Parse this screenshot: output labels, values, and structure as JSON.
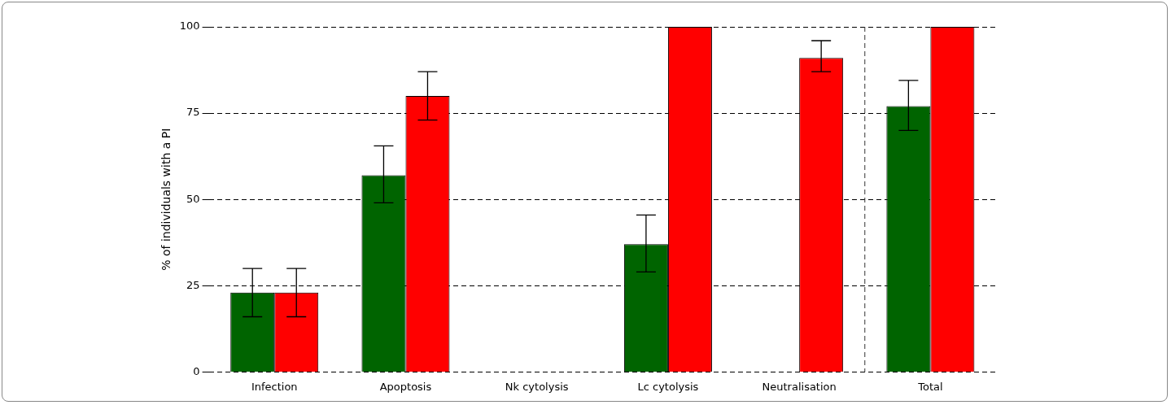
{
  "chart_data": {
    "type": "bar",
    "y_label": "% of individuals with a PI",
    "categories": [
      "Infection",
      "Apoptosis",
      "Nk cytolysis",
      "Lc cytolysis",
      "Neutralisation",
      "Total"
    ],
    "series": [
      {
        "color": "#006400",
        "values": [
          23,
          57,
          0,
          37,
          0,
          77
        ],
        "error_low": [
          16,
          49,
          null,
          29,
          null,
          70
        ],
        "error_high": [
          30,
          65.5,
          null,
          45.5,
          null,
          84.5
        ]
      },
      {
        "color": "#ff0000",
        "values": [
          23,
          80,
          0,
          100,
          91,
          100
        ],
        "error_low": [
          16,
          73,
          null,
          null,
          87,
          null
        ],
        "error_high": [
          30,
          87,
          null,
          null,
          96,
          null
        ]
      }
    ],
    "ylim": [
      0,
      100
    ],
    "yticks": [
      0,
      25,
      50,
      75,
      100
    ],
    "grid": true
  }
}
